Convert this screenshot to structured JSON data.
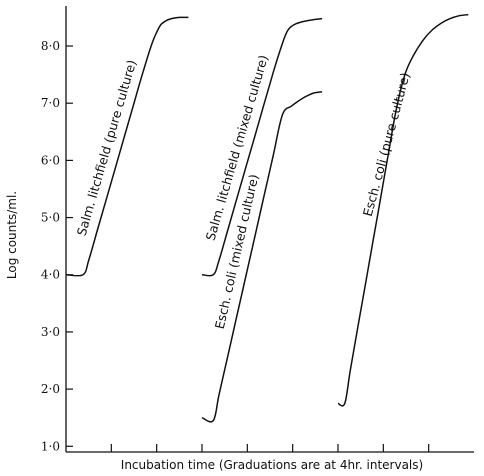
{
  "chart_data": {
    "type": "line",
    "title": "",
    "xlabel": "Incubation time (Graduations are at 4hr. intervals)",
    "ylabel": "Log counts/ml.",
    "xlim": [
      0,
      36
    ],
    "ylim": [
      0.9,
      8.7
    ],
    "x_ticks": [
      4,
      8,
      12,
      16,
      20,
      24,
      28,
      32
    ],
    "y_ticks": [
      {
        "value": 1.0,
        "label": "1·0"
      },
      {
        "value": 2.0,
        "label": "2·0"
      },
      {
        "value": 3.0,
        "label": "3·0"
      },
      {
        "value": 4.0,
        "label": "4·0"
      },
      {
        "value": 5.0,
        "label": "5·0"
      },
      {
        "value": 6.0,
        "label": "6·0"
      },
      {
        "value": 7.0,
        "label": "7·0"
      },
      {
        "value": 8.0,
        "label": "8·0"
      }
    ],
    "series": [
      {
        "name": "Salm. litchfield (pure culture)",
        "x": [
          0,
          1.5,
          2.0,
          2.8,
          3.6,
          4.4,
          5.2,
          6.0,
          6.8,
          7.6,
          8.1,
          8.4,
          8.8,
          9.3,
          10.0,
          10.8
        ],
        "y": [
          4.0,
          4.0,
          4.25,
          4.8,
          5.35,
          5.9,
          6.45,
          7.0,
          7.55,
          8.05,
          8.28,
          8.38,
          8.44,
          8.48,
          8.5,
          8.5
        ]
      },
      {
        "name": "Salm. litchfield (mixed culture)",
        "x": [
          12.0,
          13.0,
          13.5,
          14.3,
          15.1,
          15.9,
          16.7,
          17.5,
          18.3,
          19.1,
          19.5,
          19.8,
          20.3,
          21.0,
          21.8,
          22.6
        ],
        "y": [
          4.0,
          4.0,
          4.25,
          4.8,
          5.35,
          5.9,
          6.45,
          7.0,
          7.55,
          8.05,
          8.25,
          8.33,
          8.39,
          8.43,
          8.46,
          8.48
        ]
      },
      {
        "name": "Esch. coli (mixed culture)",
        "x": [
          12.0,
          13.0,
          13.5,
          14.3,
          15.1,
          15.9,
          16.7,
          17.5,
          18.3,
          19.1,
          19.9,
          20.6,
          21.0,
          21.4,
          21.9,
          22.6
        ],
        "y": [
          1.5,
          1.45,
          1.9,
          2.6,
          3.3,
          4.0,
          4.7,
          5.4,
          6.1,
          6.8,
          6.95,
          7.05,
          7.1,
          7.14,
          7.18,
          7.2
        ]
      },
      {
        "name": "Esch. coli (pure culture)",
        "x": [
          24.0,
          24.6,
          25.1,
          25.9,
          26.7,
          27.5,
          28.3,
          29.1,
          29.9,
          30.7,
          31.5,
          32.3,
          33.1,
          33.9,
          34.7,
          35.5
        ],
        "y": [
          1.75,
          1.75,
          2.35,
          3.25,
          4.15,
          5.05,
          5.95,
          6.85,
          7.5,
          7.85,
          8.1,
          8.28,
          8.4,
          8.48,
          8.53,
          8.55
        ]
      }
    ]
  }
}
